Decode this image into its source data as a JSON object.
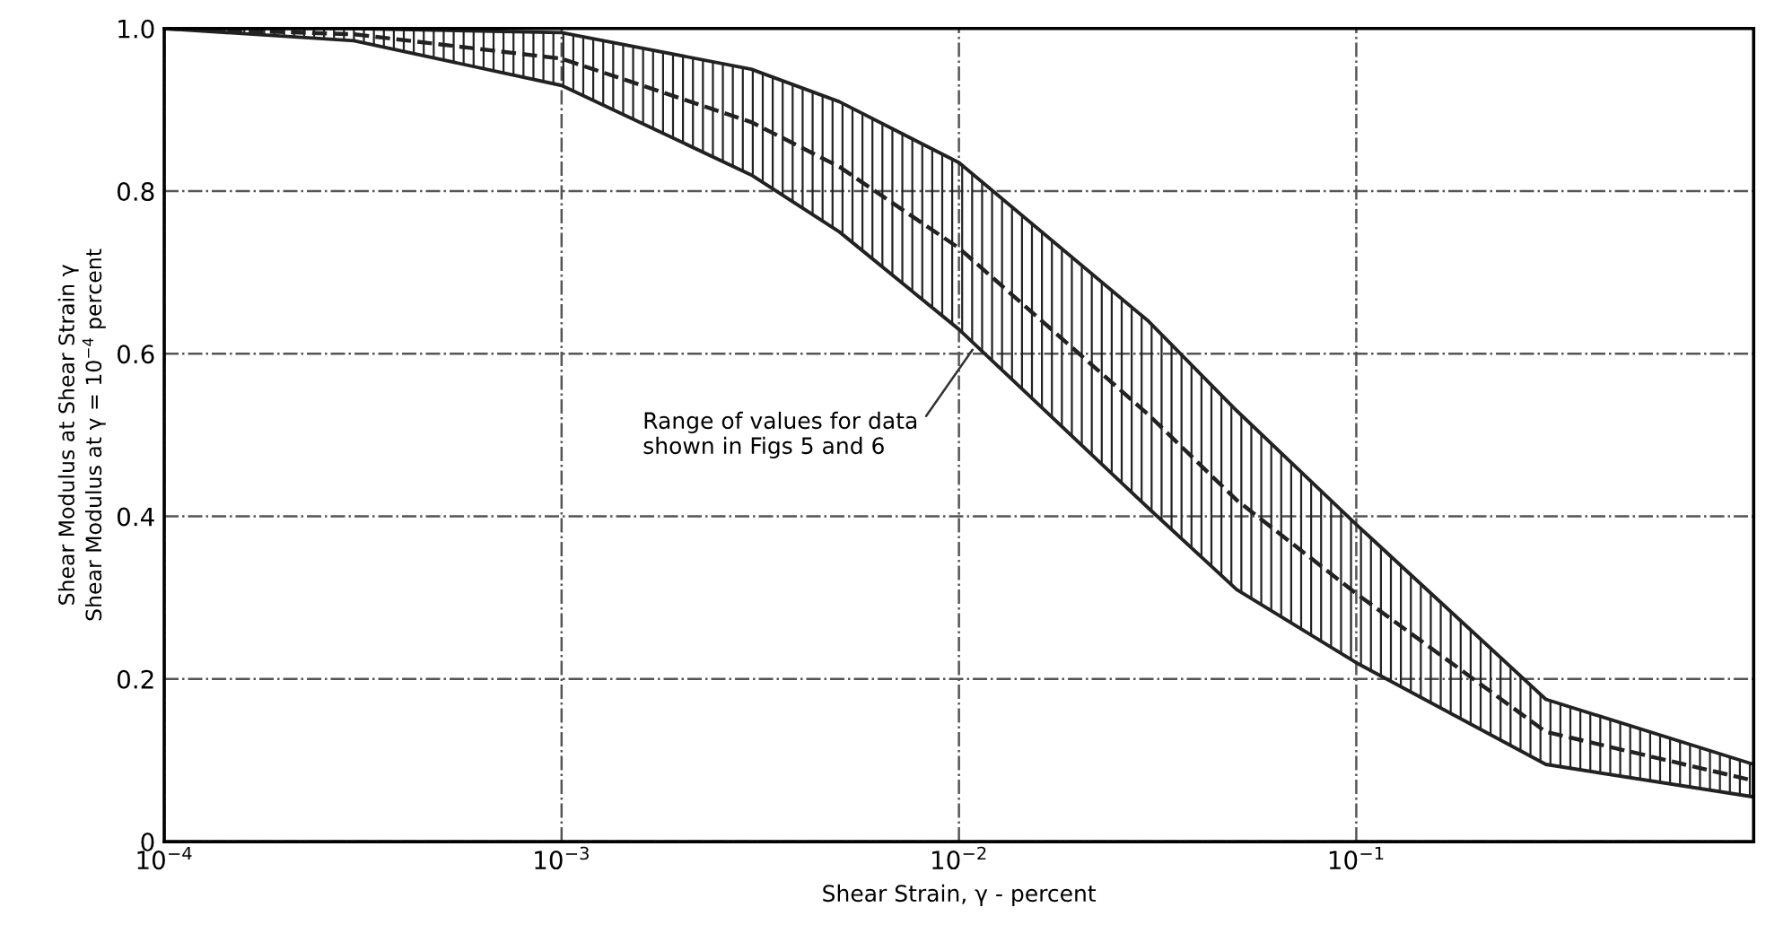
{
  "chart_data": {
    "type": "line",
    "xlabel": "Shear Strain, γ - percent",
    "ylabel": "Shear Modulus at Shear Strain γ\nShear Modulus at γ = 10$^{−4}$ percent",
    "log": "x",
    "x": [
      0.0001,
      0.0003,
      0.001,
      0.003,
      0.005,
      0.01,
      0.03,
      0.05,
      0.1,
      0.3,
      1
    ],
    "series": [
      {
        "color": "#222222",
        "line_style": "dashed",
        "values": [
          1.0,
          0.993,
          0.963,
          0.885,
          0.83,
          0.73,
          0.525,
          0.42,
          0.305,
          0.135,
          0.075
        ],
        "lower": [
          1.0,
          0.985,
          0.93,
          0.82,
          0.75,
          0.63,
          0.41,
          0.31,
          0.22,
          0.095,
          0.055
        ],
        "upper": [
          1.0,
          1.0,
          0.995,
          0.95,
          0.91,
          0.835,
          0.64,
          0.53,
          0.39,
          0.175,
          0.095
        ]
      }
    ],
    "xlim": [
      0.0001,
      1
    ],
    "xticks": [
      {
        "value": 0.0001,
        "label": "10$^{−4}$"
      },
      {
        "value": 0.001,
        "label": "10$^{−3}$"
      },
      {
        "value": 0.01,
        "label": "10$^{−2}$"
      },
      {
        "value": 0.1,
        "label": "10$^{−1}$"
      }
    ],
    "ylim": [
      0,
      1.0
    ],
    "yticks": [
      0,
      {
        "value": 0.2,
        "label": "0.2"
      },
      {
        "value": 0.4,
        "label": "0.4"
      },
      {
        "value": 0.6,
        "label": "0.6"
      },
      {
        "value": 0.8,
        "label": "0.8"
      },
      {
        "value": 1.0,
        "label": "1.0"
      }
    ],
    "grid": true,
    "annotations": [
      {
        "text": "Range of values for data\nshown in Figs 5 and 6",
        "x": 0.011,
        "y": 0.61
      }
    ]
  }
}
